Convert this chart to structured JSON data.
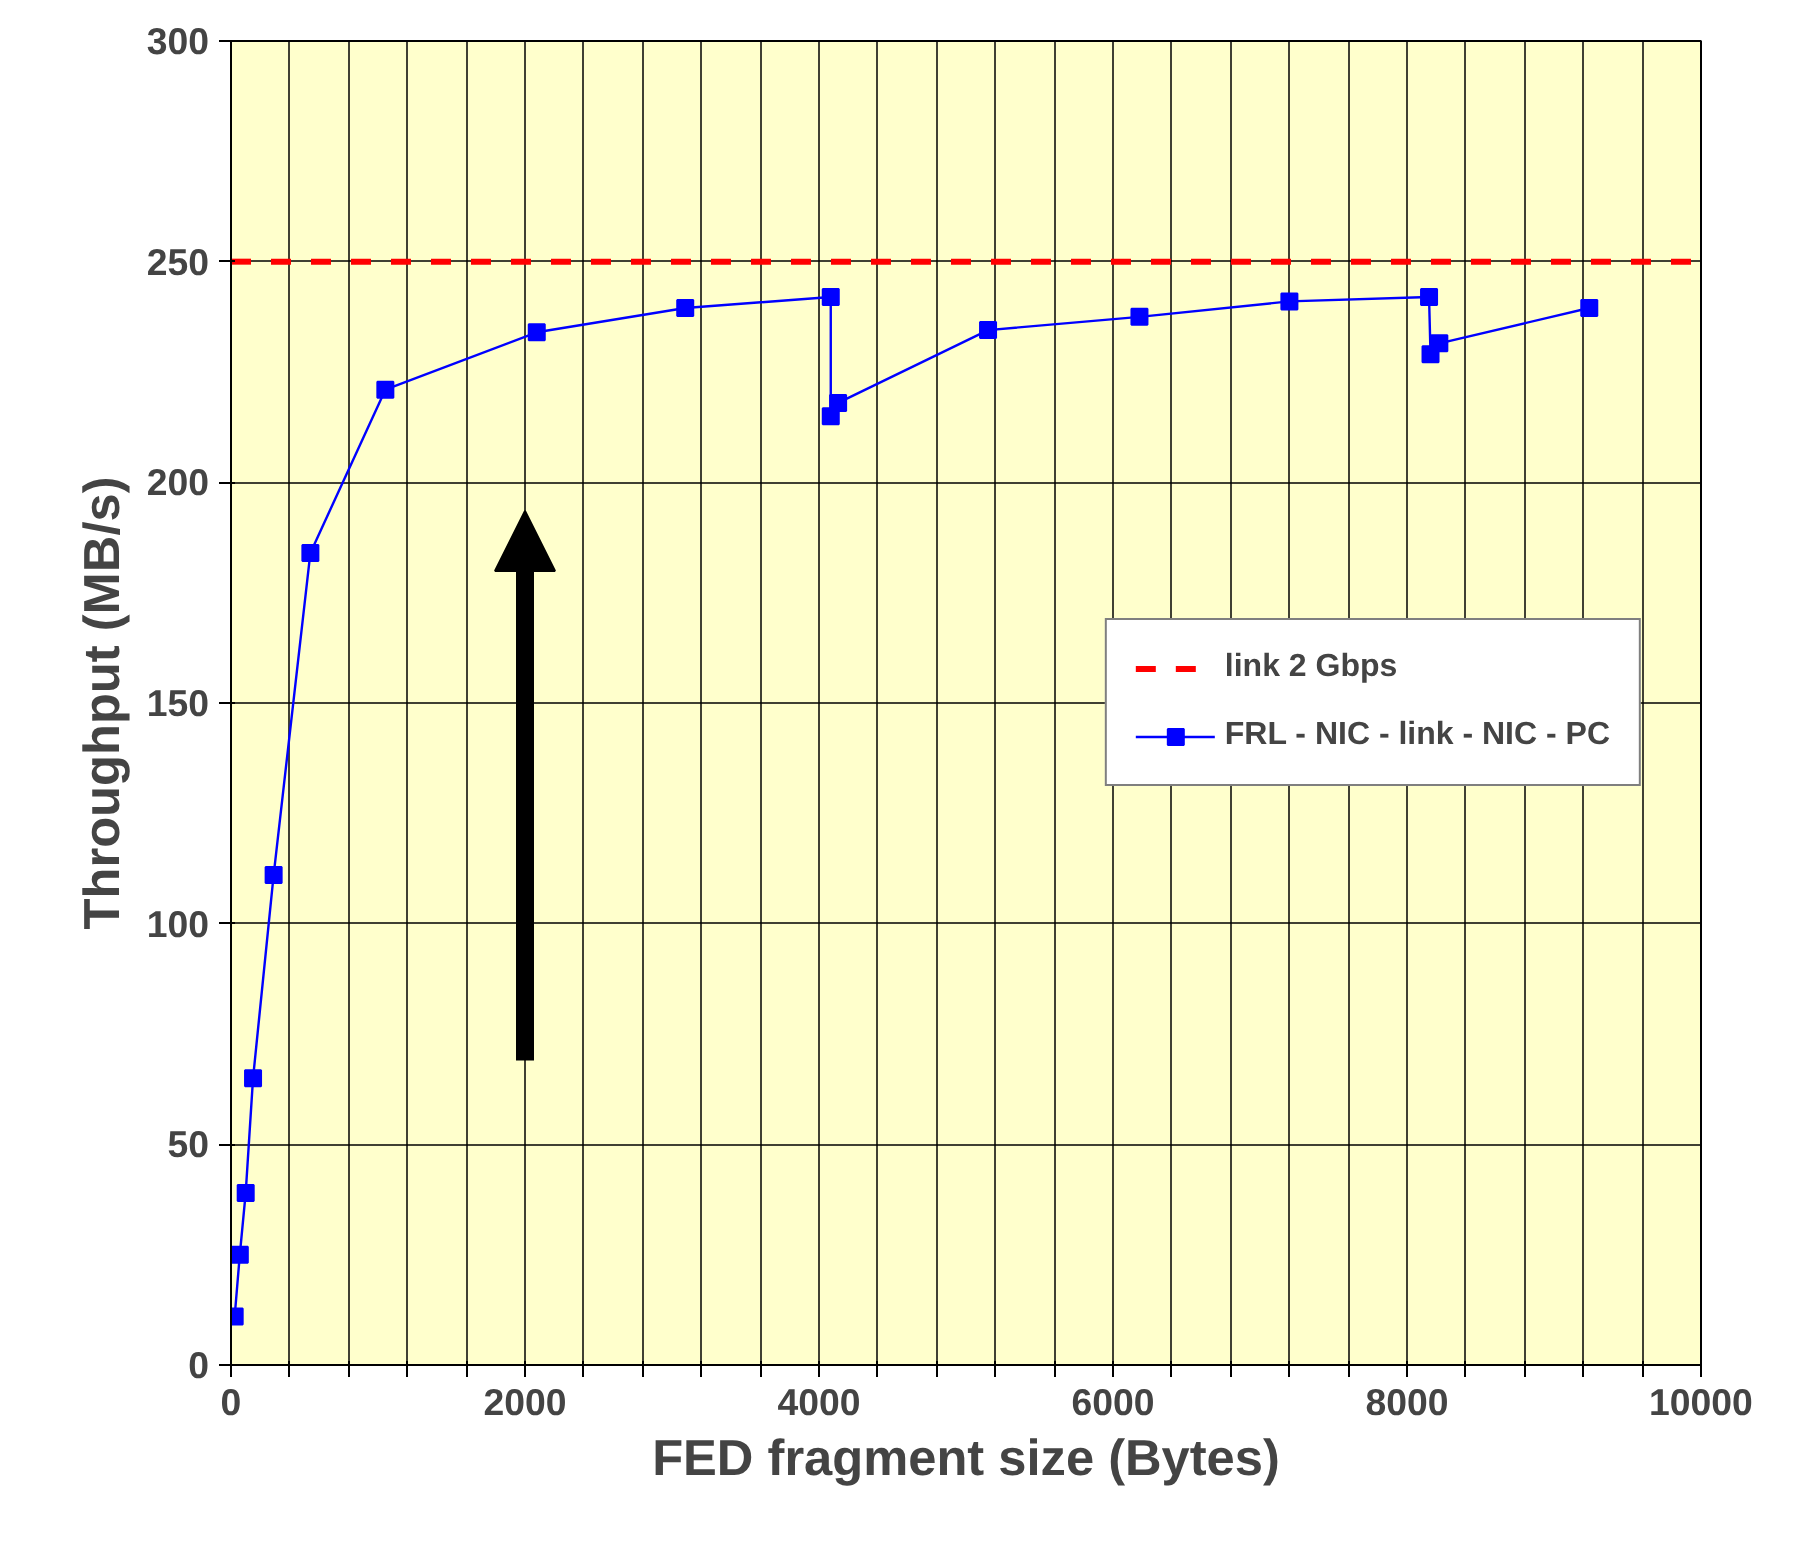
{
  "chart_data": {
    "type": "line",
    "xlabel": "FED fragment size (Bytes)",
    "ylabel": "Throughput (MB/s)",
    "xlim": [
      0,
      10000
    ],
    "ylim": [
      0,
      300
    ],
    "xticks": [
      0,
      {
        "value": 400,
        "label": null
      },
      {
        "value": 800,
        "label": null
      },
      {
        "value": 1200,
        "label": null
      },
      {
        "value": 1600,
        "label": null
      },
      2000,
      {
        "value": 2400,
        "label": null
      },
      {
        "value": 2800,
        "label": null
      },
      {
        "value": 3200,
        "label": null
      },
      {
        "value": 3600,
        "label": null
      },
      4000,
      {
        "value": 4400,
        "label": null
      },
      {
        "value": 4800,
        "label": null
      },
      {
        "value": 5200,
        "label": null
      },
      {
        "value": 5600,
        "label": null
      },
      6000,
      {
        "value": 6400,
        "label": null
      },
      {
        "value": 6800,
        "label": null
      },
      {
        "value": 7200,
        "label": null
      },
      {
        "value": 7600,
        "label": null
      },
      8000,
      {
        "value": 8400,
        "label": null
      },
      {
        "value": 8800,
        "label": null
      },
      {
        "value": 9200,
        "label": null
      },
      {
        "value": 9600,
        "label": null
      },
      10000
    ],
    "yticks": [
      0,
      50,
      100,
      150,
      200,
      250,
      300
    ],
    "grid": true,
    "legend": "right",
    "marker": "square",
    "line_style": "solid",
    "ref_lines": [
      {
        "axis": "y",
        "value": 250,
        "label": "link 2 Gbps",
        "color": "#ff0000",
        "line_style": "dashed"
      }
    ],
    "series": [
      {
        "name": "FRL - NIC - link - NIC - PC",
        "color": "#0000ff",
        "x": [
          25,
          60,
          100,
          150,
          290,
          540,
          1050,
          2080,
          3090,
          4080,
          4080,
          4130,
          5150,
          6180,
          7200,
          8150,
          8160,
          8220,
          9240
        ],
        "values": [
          11,
          25,
          39,
          65,
          111,
          184,
          221,
          234,
          239.5,
          242,
          215,
          218,
          234.5,
          237.5,
          241,
          242,
          229,
          231.5,
          239.5
        ]
      }
    ]
  }
}
